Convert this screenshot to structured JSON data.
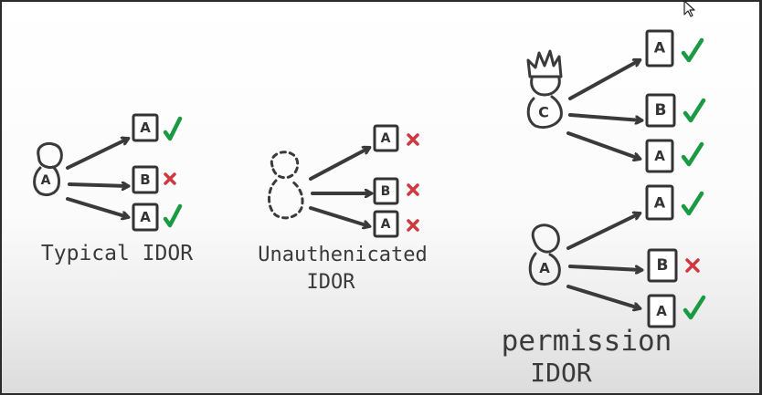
{
  "colors": {
    "allowed": "#1a9a42",
    "denied": "#d0383f",
    "ink": "#3a3a3a"
  },
  "panels": [
    {
      "id": "typical",
      "caption": [
        "Typical IDOR"
      ],
      "actor": {
        "letter": "A",
        "style": "solid"
      },
      "targets": [
        {
          "letter": "A",
          "result": "allowed"
        },
        {
          "letter": "B",
          "result": "denied"
        },
        {
          "letter": "A",
          "result": "allowed"
        }
      ]
    },
    {
      "id": "unauthenticated",
      "caption": [
        "Unauthenicated",
        "IDOR"
      ],
      "actor": {
        "letter": "",
        "style": "dashed"
      },
      "targets": [
        {
          "letter": "A",
          "result": "denied"
        },
        {
          "letter": "B",
          "result": "denied"
        },
        {
          "letter": "A",
          "result": "denied"
        }
      ]
    },
    {
      "id": "permission",
      "caption": [
        "permission",
        "IDOR"
      ],
      "actors": [
        {
          "letter": "C",
          "style": "crowned",
          "targets": [
            {
              "letter": "A",
              "result": "allowed"
            },
            {
              "letter": "B",
              "result": "allowed"
            },
            {
              "letter": "A",
              "result": "allowed"
            }
          ]
        },
        {
          "letter": "A",
          "style": "solid",
          "targets": [
            {
              "letter": "A",
              "result": "allowed"
            },
            {
              "letter": "B",
              "result": "denied"
            },
            {
              "letter": "A",
              "result": "allowed"
            }
          ]
        }
      ]
    }
  ],
  "overlay": {
    "cursor": "arrow-cursor-icon"
  }
}
